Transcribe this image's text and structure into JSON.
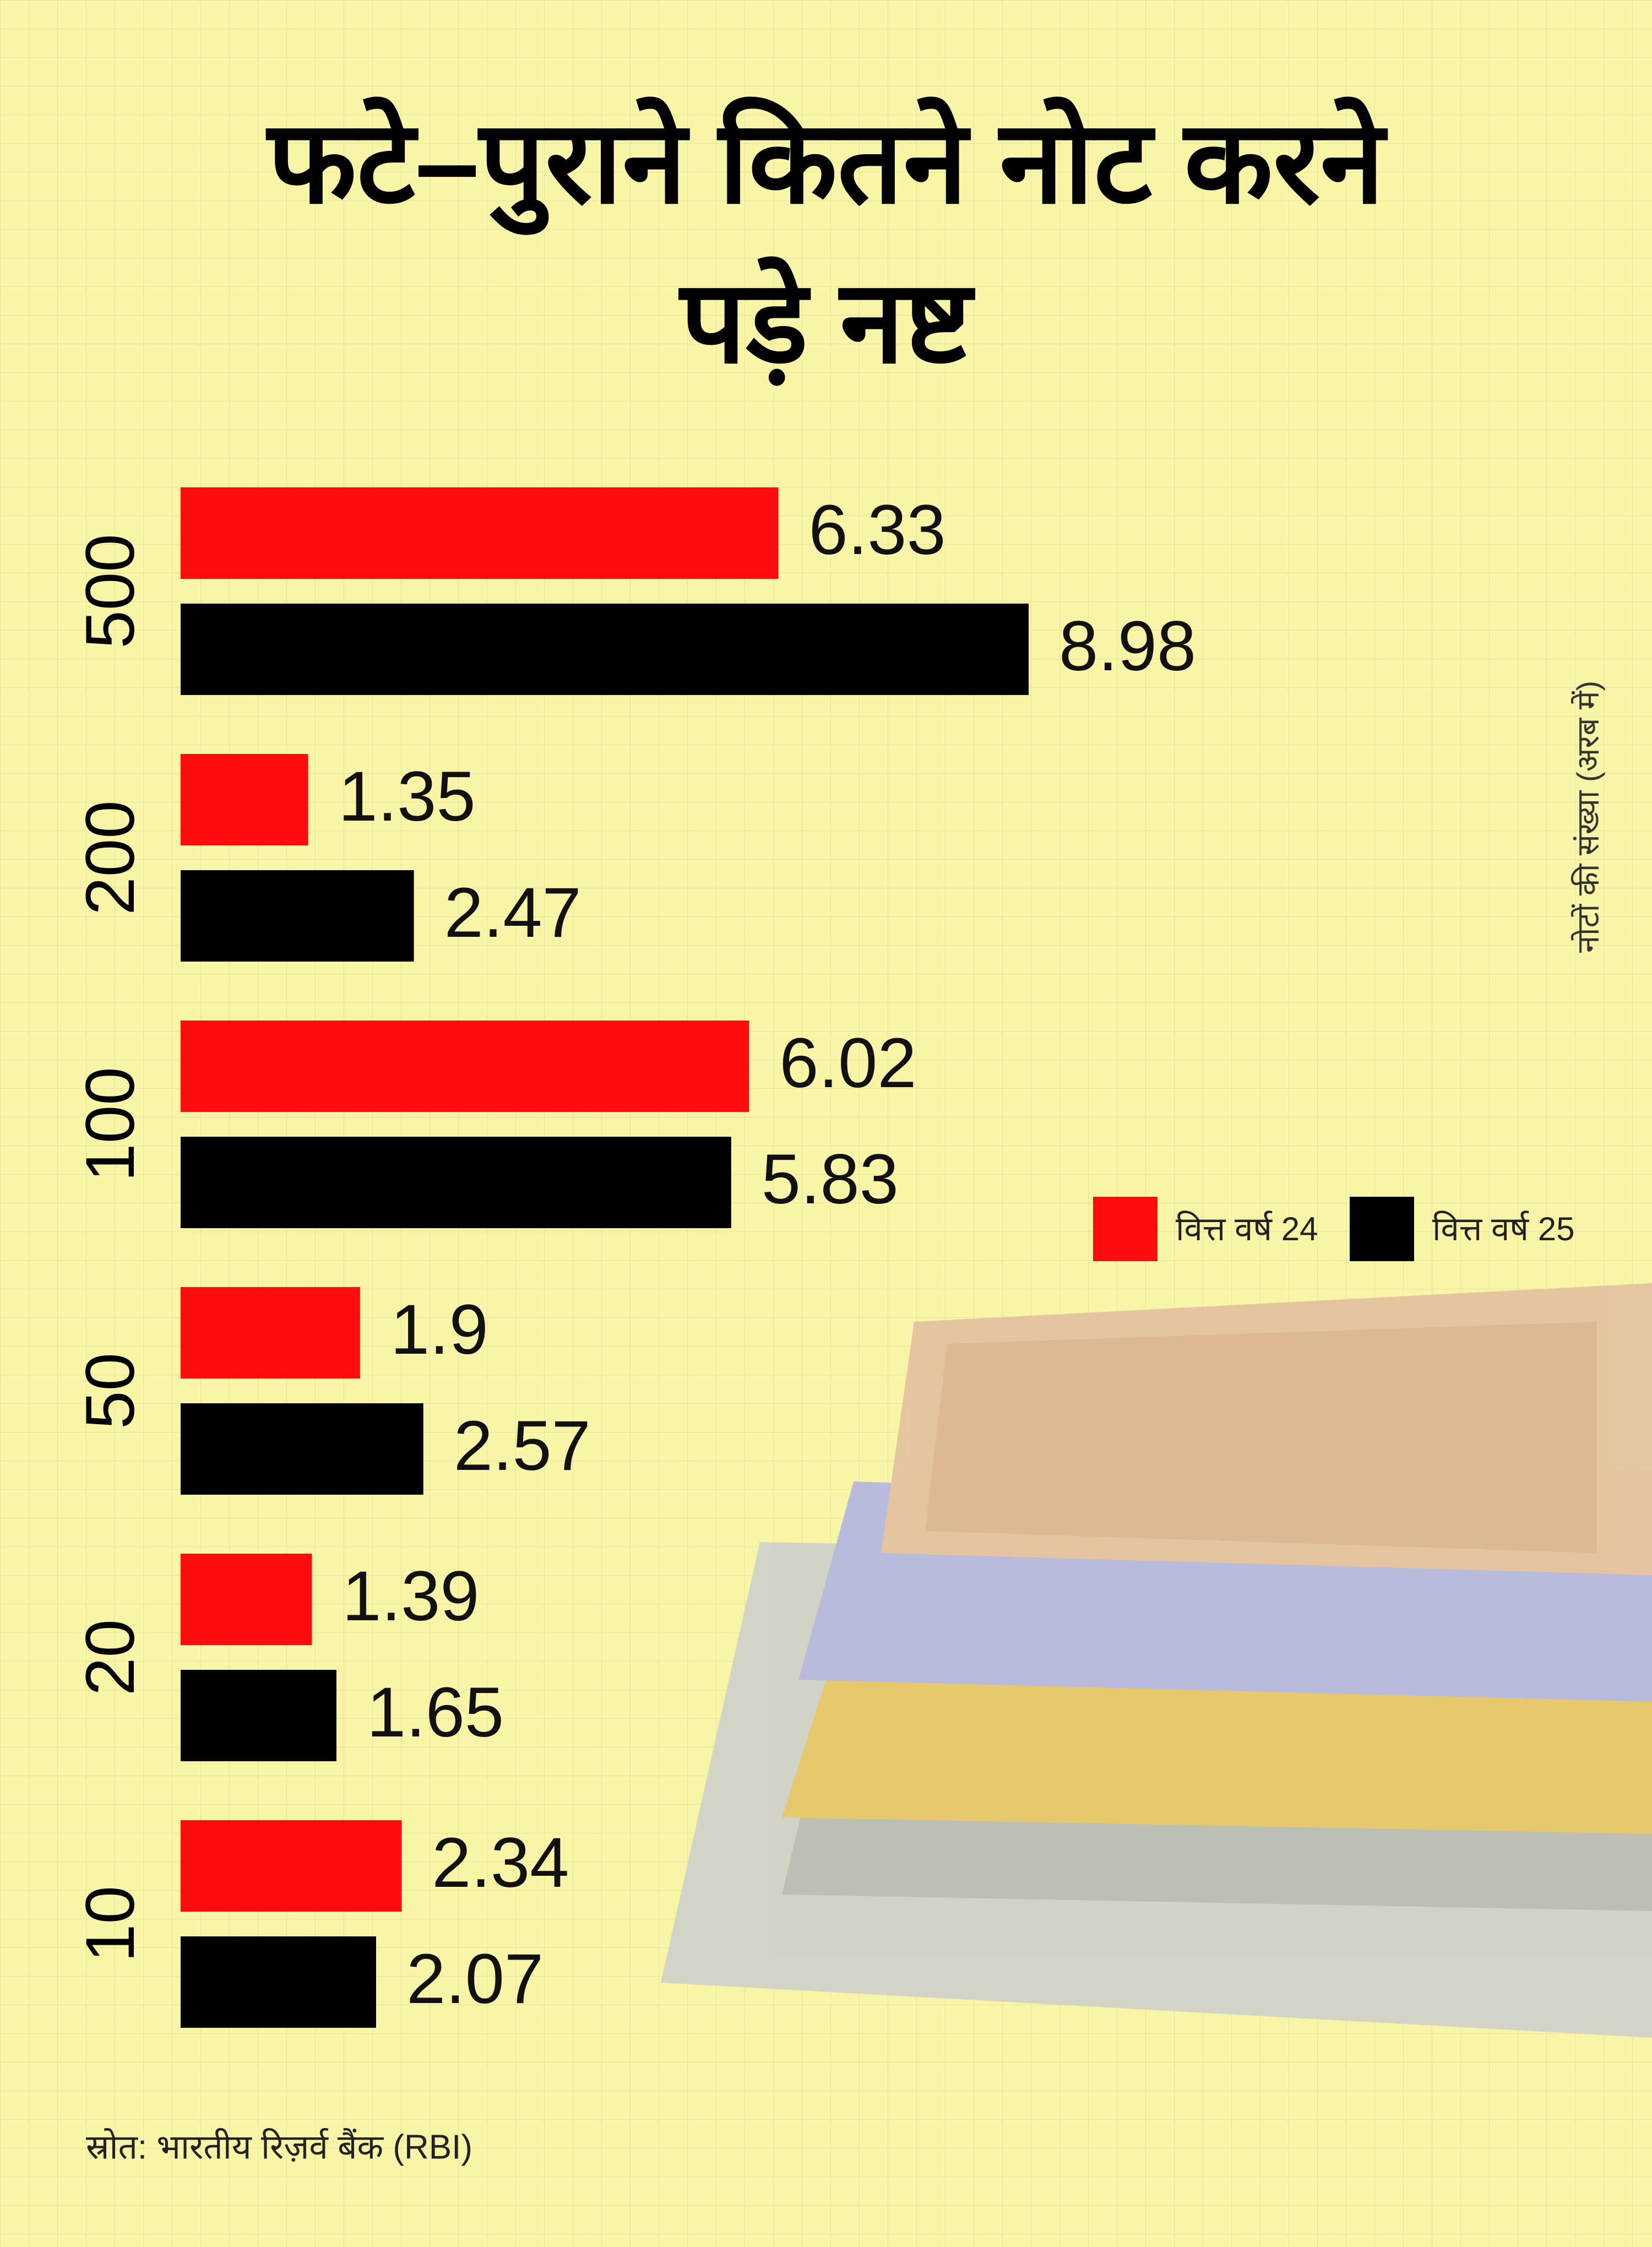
{
  "chart_data": {
    "type": "bar",
    "orientation": "horizontal",
    "title": "फटे–पुराने कितने नोट करने पड़े नष्ट",
    "axis_label": "नोटों की संख्या (अरब में)",
    "source": "स्रोत: भारतीय रिज़र्व बैंक (RBI)",
    "categories": [
      "500",
      "200",
      "100",
      "50",
      "20",
      "10"
    ],
    "series": [
      {
        "name": "वित्त वर्ष 24",
        "color": "#ff0d0d",
        "values": [
          6.33,
          1.35,
          6.02,
          1.9,
          1.39,
          2.34
        ]
      },
      {
        "name": "वित्त वर्ष 25",
        "color": "#000000",
        "values": [
          8.98,
          2.47,
          5.83,
          2.57,
          1.65,
          2.07
        ]
      }
    ]
  }
}
